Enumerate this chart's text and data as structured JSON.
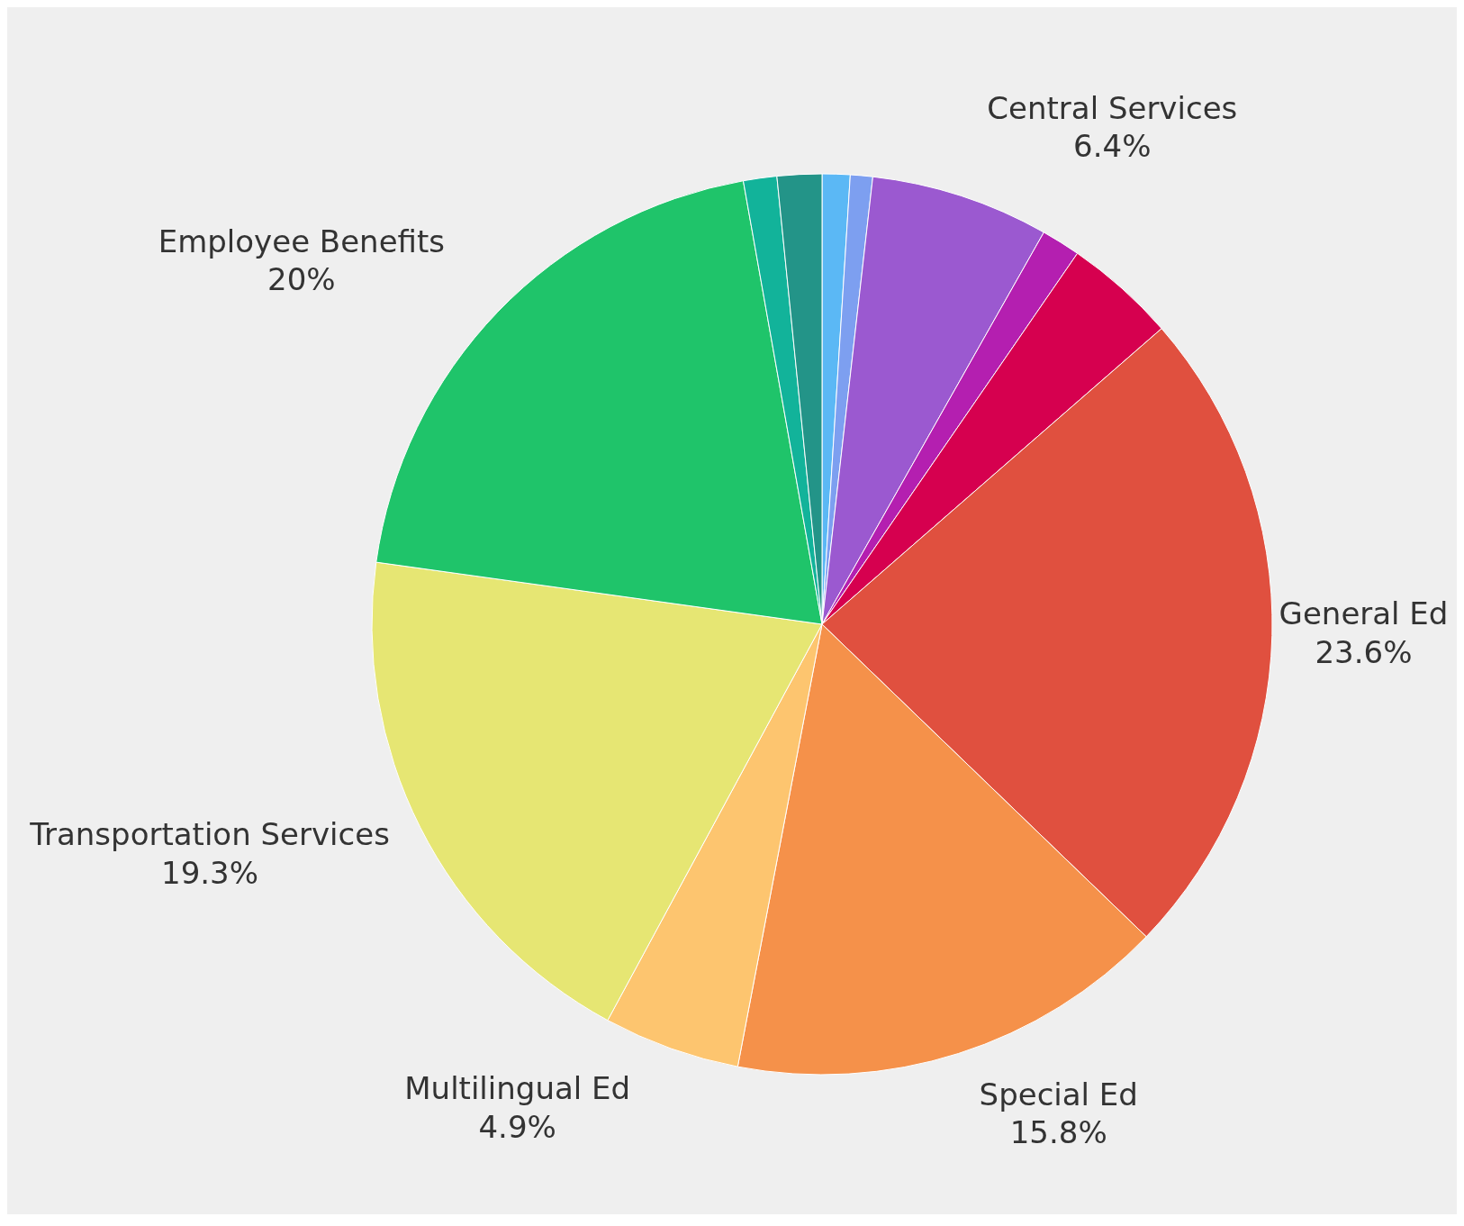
{
  "chart_data": {
    "type": "pie",
    "categories": [
      null,
      null,
      "Central Services",
      null,
      null,
      "General Ed",
      "Special Ed",
      "Multilingual Ed",
      "Transportation Services",
      "Employee Benefits",
      null,
      null
    ],
    "values": [
      1.0,
      0.8,
      6.4,
      1.4,
      4.0,
      23.6,
      15.8,
      4.9,
      19.3,
      20,
      1.2,
      1.6
    ],
    "value_labels": [
      null,
      null,
      "6.4%",
      null,
      null,
      "23.6%",
      "15.8%",
      "4.9%",
      "19.3%",
      "20%",
      null,
      null
    ],
    "colors": [
      "#5bb8f5",
      "#7d9ff0",
      "#9b59d0",
      "#b41fb0",
      "#d6004f",
      "#e0503f",
      "#f5914a",
      "#fdc56f",
      "#e6e673",
      "#1fc46a",
      "#12b39a",
      "#239488"
    ],
    "legend": false
  }
}
